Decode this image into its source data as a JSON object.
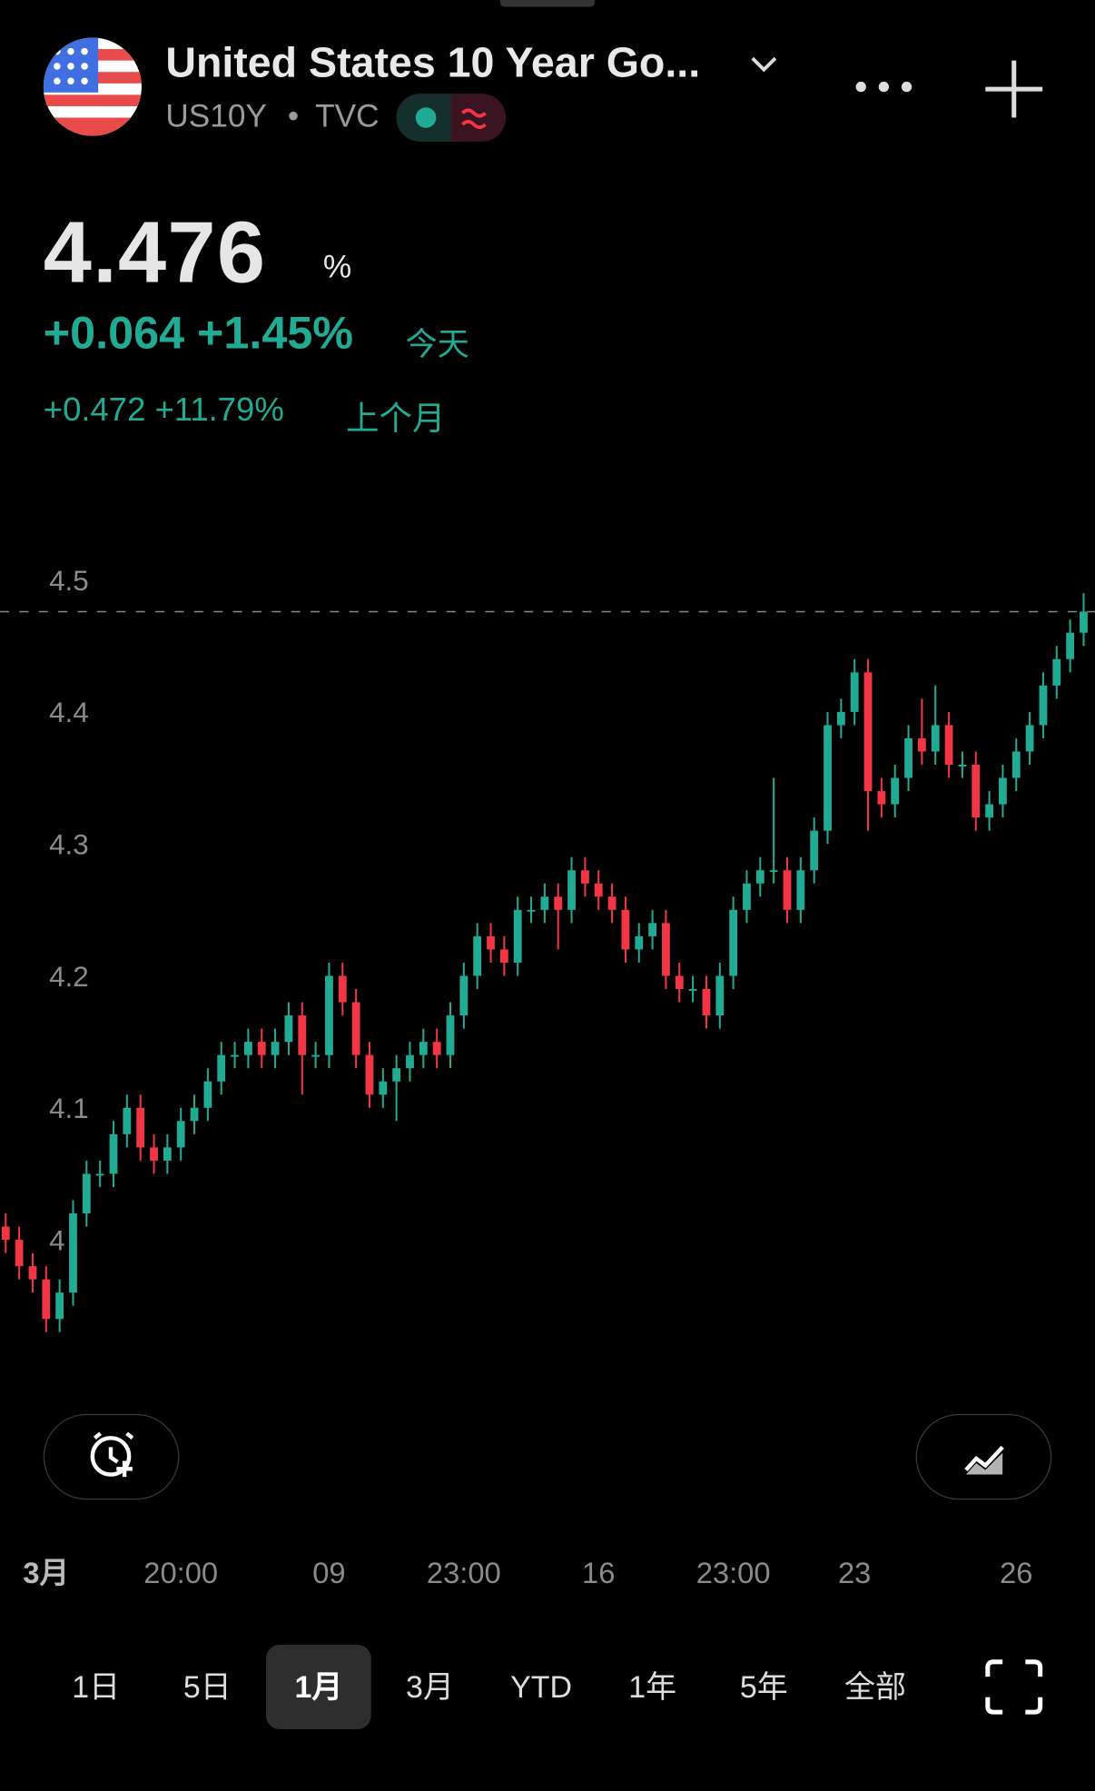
{
  "header": {
    "title": "United States 10 Year Go...",
    "symbol": "US10Y",
    "separator": "•",
    "exchange": "TVC"
  },
  "quote": {
    "price": "4.476",
    "unit": "%",
    "change_today": "+0.064 +1.45%",
    "today_label": "今天",
    "change_month": "+0.472 +11.79%",
    "month_label": "上个月"
  },
  "chart_data": {
    "type": "candlestick",
    "up_color": "#22ab94",
    "down_color": "#f23645",
    "ylim": [
      3.9,
      4.55
    ],
    "yticks": [
      4.5,
      4.4,
      4.3,
      4.2,
      4.1,
      4
    ],
    "categories": [
      null,
      null,
      null,
      "3月",
      null,
      null,
      null,
      null,
      null,
      null,
      null,
      null,
      null,
      "20:00",
      null,
      null,
      null,
      null,
      null,
      null,
      null,
      null,
      null,
      null,
      "09",
      null,
      null,
      null,
      null,
      null,
      null,
      null,
      null,
      null,
      "23:00",
      null,
      null,
      null,
      null,
      null,
      null,
      null,
      null,
      null,
      "16",
      null,
      null,
      null,
      null,
      null,
      null,
      null,
      null,
      null,
      "23:00",
      null,
      null,
      null,
      null,
      null,
      null,
      null,
      null,
      "23",
      null,
      null,
      null,
      null,
      null,
      null,
      null,
      null,
      null,
      null,
      null,
      "26",
      null,
      null,
      null,
      null,
      null
    ],
    "open": [
      4.01,
      4.0,
      3.98,
      3.97,
      3.94,
      3.96,
      4.02,
      4.05,
      4.05,
      4.08,
      4.1,
      4.07,
      4.06,
      4.07,
      4.09,
      4.1,
      4.12,
      4.14,
      4.14,
      4.15,
      4.14,
      4.15,
      4.17,
      4.14,
      4.14,
      4.2,
      4.18,
      4.14,
      4.11,
      4.12,
      4.13,
      4.14,
      4.15,
      4.14,
      4.17,
      4.2,
      4.23,
      4.22,
      4.21,
      4.25,
      4.25,
      4.26,
      4.25,
      4.28,
      4.27,
      4.26,
      4.25,
      4.22,
      4.23,
      4.24,
      4.2,
      4.19,
      4.19,
      4.17,
      4.2,
      4.25,
      4.27,
      4.28,
      4.28,
      4.25,
      4.28,
      4.31,
      4.39,
      4.4,
      4.43,
      4.34,
      4.33,
      4.35,
      4.38,
      4.37,
      4.39,
      4.36,
      4.36,
      4.32,
      4.33,
      4.35,
      4.37,
      4.39,
      4.42,
      4.44,
      4.46
    ],
    "high": [
      4.02,
      4.01,
      3.99,
      3.98,
      3.97,
      4.03,
      4.06,
      4.06,
      4.09,
      4.11,
      4.11,
      4.08,
      4.08,
      4.1,
      4.11,
      4.13,
      4.15,
      4.15,
      4.16,
      4.16,
      4.16,
      4.18,
      4.18,
      4.15,
      4.21,
      4.21,
      4.19,
      4.15,
      4.13,
      4.14,
      4.15,
      4.16,
      4.16,
      4.18,
      4.21,
      4.24,
      4.24,
      4.23,
      4.26,
      4.26,
      4.27,
      4.27,
      4.29,
      4.29,
      4.28,
      4.27,
      4.26,
      4.24,
      4.25,
      4.25,
      4.21,
      4.2,
      4.2,
      4.21,
      4.26,
      4.28,
      4.29,
      4.35,
      4.29,
      4.29,
      4.32,
      4.4,
      4.41,
      4.44,
      4.44,
      4.35,
      4.36,
      4.39,
      4.41,
      4.42,
      4.4,
      4.37,
      4.37,
      4.34,
      4.36,
      4.38,
      4.4,
      4.43,
      4.45,
      4.47,
      4.49
    ],
    "low": [
      3.99,
      3.97,
      3.96,
      3.93,
      3.93,
      3.95,
      4.01,
      4.04,
      4.04,
      4.07,
      4.06,
      4.05,
      4.05,
      4.06,
      4.08,
      4.09,
      4.11,
      4.13,
      4.13,
      4.13,
      4.13,
      4.14,
      4.11,
      4.13,
      4.13,
      4.17,
      4.13,
      4.1,
      4.1,
      4.09,
      4.12,
      4.13,
      4.13,
      4.13,
      4.16,
      4.19,
      4.21,
      4.2,
      4.2,
      4.24,
      4.24,
      4.22,
      4.24,
      4.26,
      4.25,
      4.24,
      4.21,
      4.21,
      4.22,
      4.19,
      4.18,
      4.18,
      4.16,
      4.16,
      4.19,
      4.24,
      4.26,
      4.27,
      4.24,
      4.24,
      4.27,
      4.3,
      4.38,
      4.39,
      4.31,
      4.32,
      4.32,
      4.34,
      4.36,
      4.36,
      4.35,
      4.35,
      4.31,
      4.31,
      4.32,
      4.34,
      4.36,
      4.38,
      4.41,
      4.43,
      4.45
    ],
    "close": [
      4.0,
      3.98,
      3.97,
      3.94,
      3.96,
      4.02,
      4.05,
      4.05,
      4.08,
      4.1,
      4.07,
      4.06,
      4.07,
      4.09,
      4.1,
      4.12,
      4.14,
      4.14,
      4.15,
      4.14,
      4.15,
      4.17,
      4.14,
      4.14,
      4.2,
      4.18,
      4.14,
      4.11,
      4.12,
      4.13,
      4.14,
      4.15,
      4.14,
      4.17,
      4.2,
      4.23,
      4.22,
      4.21,
      4.25,
      4.25,
      4.26,
      4.25,
      4.28,
      4.27,
      4.26,
      4.25,
      4.22,
      4.23,
      4.24,
      4.2,
      4.19,
      4.19,
      4.17,
      4.2,
      4.25,
      4.27,
      4.28,
      4.28,
      4.25,
      4.28,
      4.31,
      4.39,
      4.4,
      4.43,
      4.34,
      4.33,
      4.35,
      4.38,
      4.37,
      4.39,
      4.36,
      4.36,
      4.32,
      4.33,
      4.35,
      4.37,
      4.39,
      4.42,
      4.44,
      4.46,
      4.476
    ]
  },
  "ranges": {
    "items": [
      "1日",
      "5日",
      "1月",
      "3月",
      "YTD",
      "1年",
      "5年",
      "全部"
    ],
    "selected": "1月"
  }
}
